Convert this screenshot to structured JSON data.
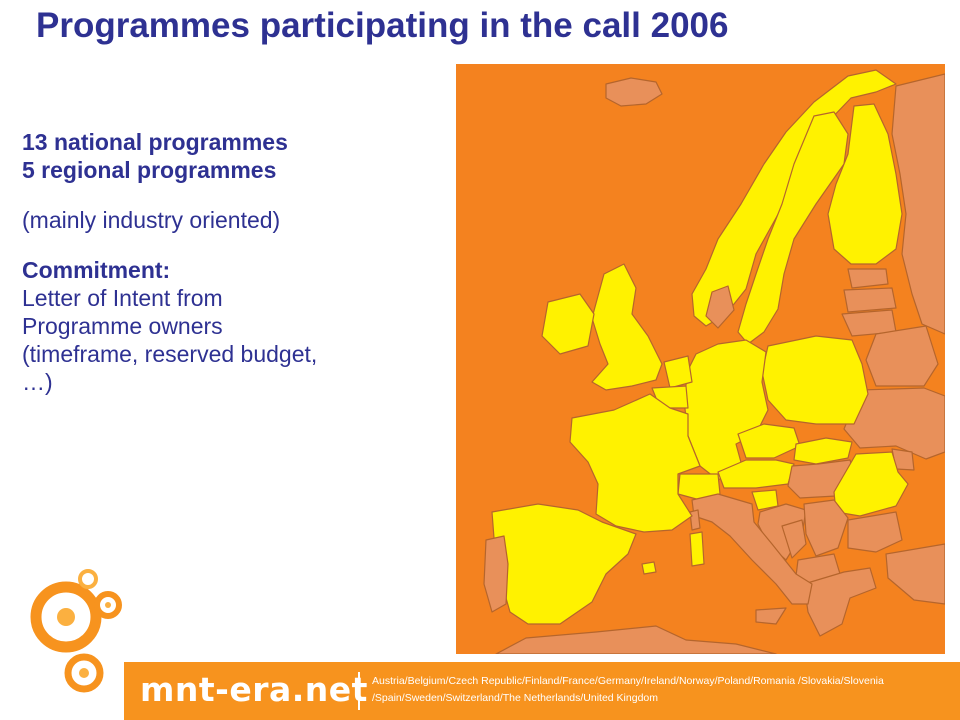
{
  "slide": {
    "title": "Programmes participating in the call 2006",
    "lines": {
      "national": "13 national programmes",
      "regional": "5 regional programmes",
      "orientation": "(mainly industry oriented)",
      "commitment_heading": "Commitment:",
      "commitment_1": "Letter of Intent from",
      "commitment_2": "Programme owners",
      "commitment_3": "(timeframe, reserved budget,",
      "commitment_4": "…)"
    }
  },
  "map": {
    "colors": {
      "sea": "#f4821f",
      "participating": "#fff200",
      "non_participating": "#e8905a",
      "border": "#b5652c"
    }
  },
  "footer": {
    "brand": "mnt-era.net",
    "countries_line1": "Austria/Belgium/Czech Republic/Finland/France/Germany/Ireland/Norway/Poland/Romania /Slovakia/Slovenia",
    "countries_line2": "/Spain/Sweden/Switzerland/The Netherlands/United Kingdom",
    "color": "#f7931e"
  },
  "logo": {
    "icon": "orange-circles-logo-icon",
    "colors": [
      "#f7931e",
      "#fbb040"
    ]
  }
}
